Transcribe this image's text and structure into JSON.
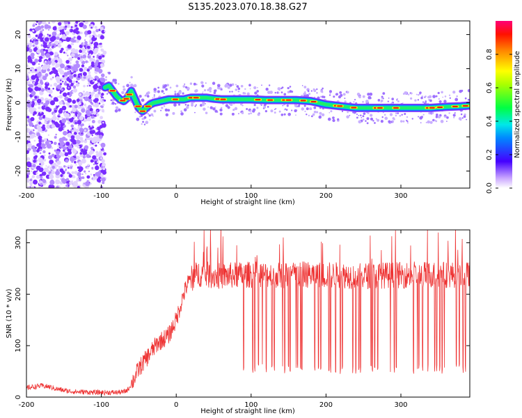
{
  "title": "S135.2023.070.18.38.G27",
  "chart_data": [
    {
      "type": "heatmap",
      "xlabel": "Height of straight line (km)",
      "ylabel": "Frequency (Hz)",
      "xlim": [
        -200,
        392
      ],
      "ylim": [
        -25,
        24
      ],
      "xticks": [
        -200,
        -100,
        0,
        100,
        200,
        300
      ],
      "yticks": [
        -20,
        -10,
        0,
        10,
        20
      ],
      "colorbar": {
        "label": "Normalized spectral amplitude",
        "ticks": [
          "0.0",
          "0.2",
          "0.4",
          "0.6",
          "0.8"
        ],
        "range": [
          0,
          1
        ]
      },
      "noise_region_x": [
        -200,
        -95
      ],
      "peak_track": {
        "x": [
          -95,
          -90,
          -85,
          -80,
          -75,
          -70,
          -65,
          -60,
          -55,
          -50,
          -45,
          -40,
          -35,
          -30,
          -20,
          -10,
          0,
          10,
          20,
          30,
          40,
          50,
          60,
          80,
          100,
          120,
          140,
          160,
          180,
          190,
          200,
          220,
          240,
          260,
          280,
          300,
          320,
          340,
          360,
          380,
          392
        ],
        "y": [
          4.5,
          5,
          3.5,
          2,
          1,
          0.5,
          1.5,
          3.5,
          1,
          -1.5,
          -2.5,
          -1.5,
          -0.5,
          0,
          0.5,
          1,
          1,
          1,
          1.5,
          1.5,
          1.5,
          1.2,
          1,
          1,
          1,
          0.8,
          0.8,
          0.8,
          0.5,
          0,
          -0.5,
          -1,
          -1.5,
          -1.5,
          -1.5,
          -1.5,
          -1.5,
          -1.5,
          -1.2,
          -1,
          -0.8
        ]
      }
    },
    {
      "type": "line",
      "xlabel": "Height of straight line (km)",
      "ylabel": "SNR (10 * v/v)",
      "xlim": [
        -200,
        392
      ],
      "ylim": [
        0,
        325
      ],
      "xticks": [
        -200,
        -100,
        0,
        100,
        200,
        300
      ],
      "yticks": [
        0,
        100,
        200,
        300
      ],
      "color": "#ee3333",
      "series": [
        {
          "x": [
            -200,
            -190,
            -180,
            -170,
            -160,
            -150,
            -140,
            -130,
            -120,
            -110,
            -100,
            -90,
            -80,
            -70,
            -65,
            -60,
            -55,
            -50,
            -45,
            -40,
            -35,
            -30,
            -25,
            -20,
            -15,
            -10,
            -5,
            0,
            5,
            10,
            15,
            20,
            25,
            30,
            40,
            50,
            60,
            80,
            100,
            120,
            140,
            160,
            180,
            200,
            220,
            240,
            260,
            280,
            300,
            320,
            340,
            360,
            380,
            392
          ],
          "values": [
            18,
            20,
            22,
            20,
            16,
            13,
            11,
            10,
            10,
            9,
            9,
            9,
            9,
            10,
            14,
            25,
            40,
            55,
            65,
            75,
            85,
            95,
            105,
            110,
            115,
            120,
            135,
            150,
            175,
            200,
            220,
            230,
            235,
            240,
            238,
            236,
            235,
            237,
            238,
            238,
            237,
            238,
            238,
            237,
            237,
            236,
            236,
            237,
            237,
            238,
            238,
            238,
            238,
            237
          ]
        }
      ],
      "dropouts_x": [
        90,
        102,
        105,
        110,
        115,
        120,
        128,
        131,
        142,
        145,
        150,
        152,
        160,
        162,
        166,
        168,
        185,
        190,
        193,
        204,
        206,
        213,
        219,
        222,
        236,
        240,
        244,
        246,
        260,
        262,
        265,
        269,
        286,
        291,
        294,
        317,
        322,
        324,
        329,
        336,
        345,
        348,
        352,
        355,
        358,
        374,
        378,
        383,
        386
      ]
    }
  ]
}
